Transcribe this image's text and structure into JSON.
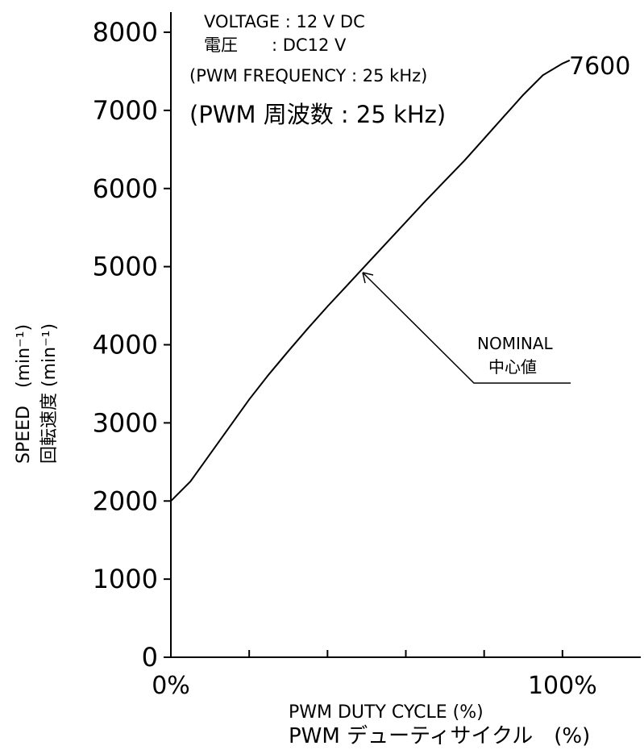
{
  "conditions": {
    "voltage_en": "VOLTAGE : 12 V DC",
    "voltage_jp": "電圧　　: DC12 V",
    "pwm_freq_en": "(PWM FREQUENCY : 25 kHz)",
    "pwm_freq_jp": "(PWM 周波数 : 25 kHz)"
  },
  "annotation": {
    "line1": "NOMINAL",
    "line2": "中心値"
  },
  "chart_data": {
    "type": "line",
    "xlabel": "PWM DUTY CYCLE (%)",
    "xlabel_jp": "PWM デューティサイクル　(%)",
    "ylabel": "SPEED　(min⁻¹)",
    "ylabel_jp": "回転速度 (min⁻¹)",
    "x_tick_labels": [
      "0%",
      "100%"
    ],
    "xlim": [
      0,
      120
    ],
    "ylim": [
      0,
      8000
    ],
    "y_ticks": [
      0,
      1000,
      2000,
      3000,
      4000,
      5000,
      6000,
      7000,
      8000
    ],
    "end_label": "7600",
    "series": [
      {
        "name": "NOMINAL",
        "x": [
          0,
          5,
          10,
          15,
          20,
          25,
          30,
          35,
          40,
          45,
          50,
          55,
          60,
          65,
          70,
          75,
          80,
          85,
          90,
          95,
          100
        ],
        "y": [
          2000,
          2250,
          2600,
          2950,
          3300,
          3620,
          3920,
          4210,
          4490,
          4760,
          5030,
          5300,
          5570,
          5840,
          6100,
          6360,
          6640,
          6920,
          7200,
          7450,
          7600
        ]
      }
    ]
  }
}
